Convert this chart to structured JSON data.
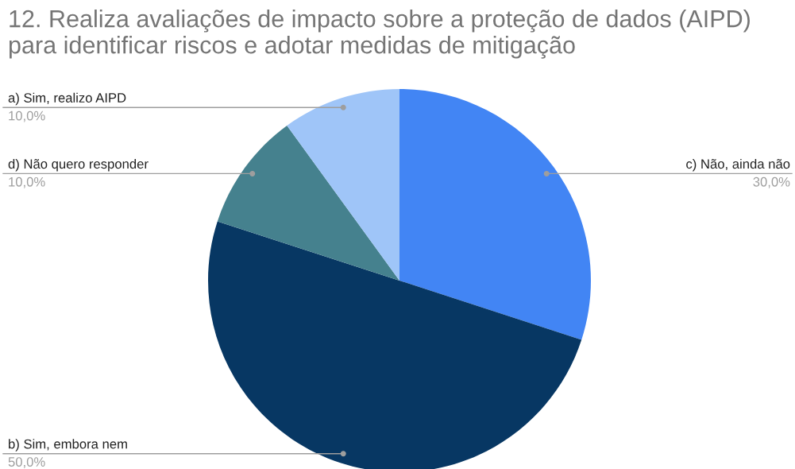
{
  "chart_data": {
    "type": "pie",
    "title": "12. Realiza avaliações de impacto sobre a proteção de dados (AIPD) para identificar riscos e adotar medidas de mitigação",
    "categories": [
      "c) Não, ainda não",
      "b) Sim, embora nem",
      "d) Não quero responder",
      "a) Sim, realizo AIPD"
    ],
    "values": [
      30,
      50,
      10,
      10
    ],
    "value_labels": [
      "30,0%",
      "50,0%",
      "10,0%",
      "10,0%"
    ],
    "colors": [
      "#4285f4",
      "#073763",
      "#45818e",
      "#9fc5f8"
    ],
    "legend": false
  }
}
